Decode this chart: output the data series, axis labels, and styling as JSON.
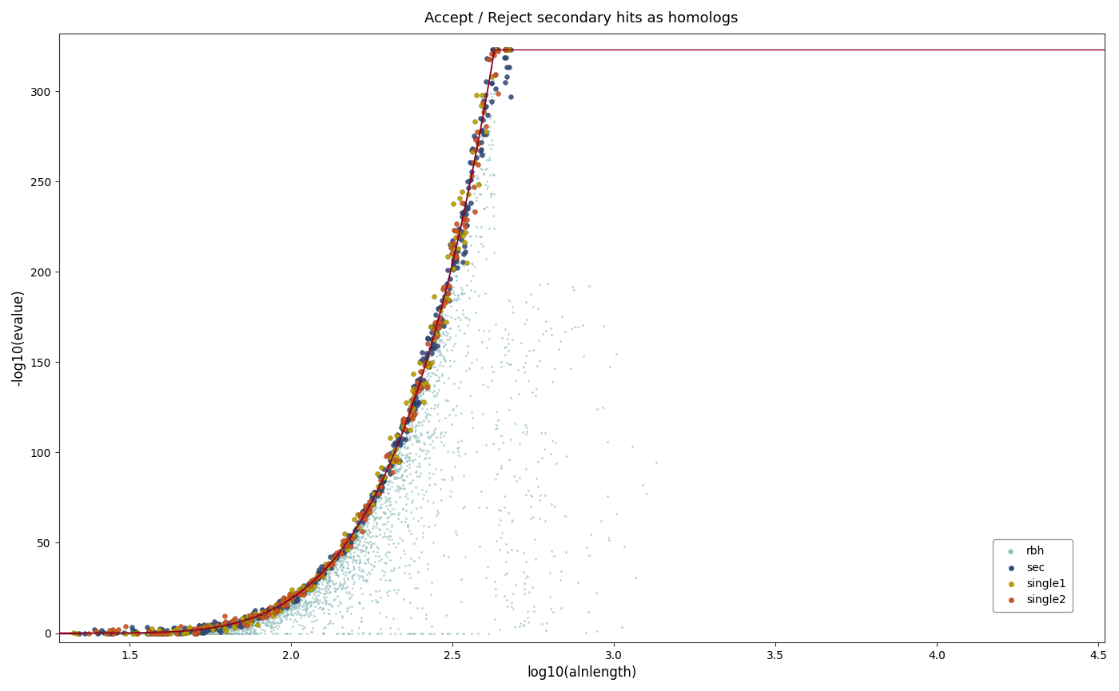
{
  "title": "Accept / Reject secondary hits as homologs",
  "xlabel": "log10(alnlength)",
  "ylabel": "-log10(evalue)",
  "xlim": [
    1.28,
    4.52
  ],
  "ylim": [
    -5,
    332
  ],
  "yticks": [
    0,
    50,
    100,
    150,
    200,
    250,
    300
  ],
  "xticks": [
    1.5,
    2.0,
    2.5,
    3.0,
    3.5,
    4.0,
    4.5
  ],
  "rbh_color": "#8fbcba",
  "sec_color": "#2e4a7a",
  "single1_color": "#b8a000",
  "single2_color": "#cc5522",
  "line_color": "#8b0020",
  "hline_y": 323,
  "rbh_size": 4,
  "sec_size": 18,
  "single1_size": 18,
  "single2_size": 18,
  "legend_labels": [
    "rbh",
    "sec",
    "single1",
    "single2"
  ],
  "bg_color": "#ffffff",
  "seed": 42,
  "curve_power": 4.5,
  "curve_scale": 0.52,
  "curve_xmin": 1.28,
  "curve_plateau_x": 2.63
}
